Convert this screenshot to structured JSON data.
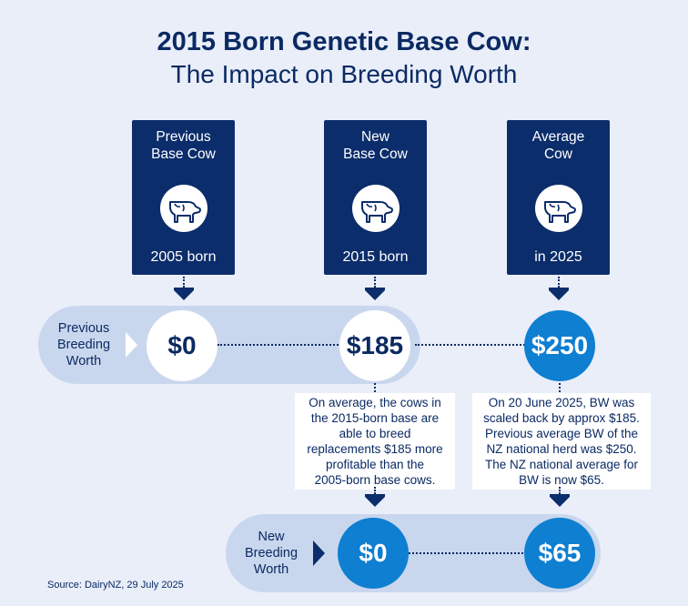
{
  "title": {
    "line1": "2015 Born Genetic Base Cow:",
    "line2": "The Impact on Breeding Worth"
  },
  "cows": [
    {
      "heading_line1": "Previous",
      "heading_line2": "Base Cow",
      "footer": "2005 born",
      "icon": "cow-icon"
    },
    {
      "heading_line1": "New",
      "heading_line2": "Base Cow",
      "footer": "2015 born",
      "icon": "cow-icon"
    },
    {
      "heading_line1": "Average",
      "heading_line2": "Cow",
      "footer": "in 2025",
      "icon": "cow-icon"
    }
  ],
  "previous_bw": {
    "label_line1": "Previous",
    "label_line2": "Breeding",
    "label_line3": "Worth",
    "values": [
      "$0",
      "$185",
      "$250"
    ]
  },
  "notes": [
    {
      "lines": [
        "On average, the cows in",
        "the 2015-born base are",
        "able to breed",
        "replacements $185 more",
        "profitable than the",
        "2005-born base cows."
      ]
    },
    {
      "lines": [
        "On 20 June 2025, BW was",
        "scaled back by approx $185.",
        "Previous average BW of the",
        "NZ national herd was $250.",
        "The NZ national average for",
        "BW is now $65."
      ]
    }
  ],
  "new_bw": {
    "label_line1": "New",
    "label_line2": "Breeding",
    "label_line3": "Worth",
    "values": [
      "$0",
      "$65"
    ]
  },
  "source": "Source: DairyNZ, 29 July 2025",
  "colors": {
    "navy": "#0c2d6b",
    "blue": "#0e7fd1",
    "band": "#c9d7ee",
    "background": "#e9eef9"
  }
}
